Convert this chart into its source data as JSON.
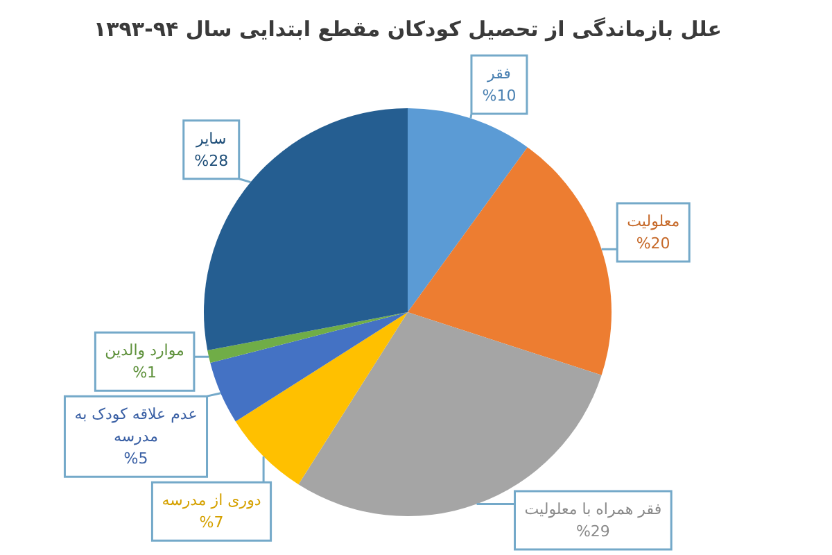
{
  "chart_data": {
    "type": "pie",
    "title": "علل بازماندگی از تحصیل کودکان مقطع ابتدایی سال ۹۴-۱۳۹۳",
    "categories": [
      "فقر",
      "معلولیت",
      "فقر همراه با معلولیت",
      "دوری از مدرسه",
      "عدم علاقه کودک به مدرسه",
      "موارد والدین",
      "سایر"
    ],
    "values": [
      10,
      20,
      29,
      7,
      5,
      1,
      28
    ],
    "colors": [
      "#5b9bd5",
      "#ed7d31",
      "#a5a5a5",
      "#ffc000",
      "#4472c4",
      "#70ad47",
      "#255e91"
    ],
    "value_labels": [
      "%10",
      "%20",
      "%29",
      "%7",
      "%5",
      "%1",
      "%28"
    ]
  }
}
